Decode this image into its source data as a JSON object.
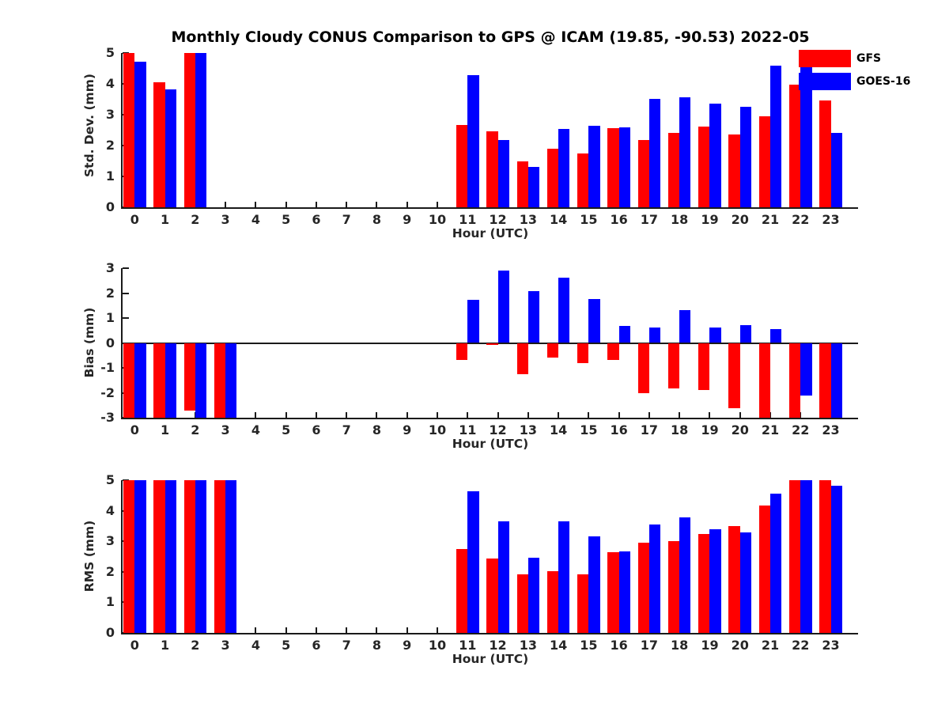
{
  "title": "Monthly Cloudy CONUS Comparison to GPS @ ICAM (19.85, -90.53) 2022-05",
  "legend": {
    "position": "top-right",
    "items": [
      {
        "label": "GFS",
        "color": "#ff0000"
      },
      {
        "label": "GOES-16",
        "color": "#0000ff"
      }
    ]
  },
  "colors": {
    "gfs": "#ff0000",
    "goes16": "#0000ff",
    "axis": "#1a1a1a",
    "text": "#262626",
    "background": "#ffffff"
  },
  "chart_data": [
    {
      "type": "bar",
      "name": "std-dev",
      "ylabel": "Std. Dev. (mm)",
      "xlabel": "Hour (UTC)",
      "ylim": [
        0,
        5
      ],
      "yticks": [
        0,
        1,
        2,
        3,
        4,
        5
      ],
      "zero_line": false,
      "grid": false,
      "categories": [
        "0",
        "1",
        "2",
        "3",
        "4",
        "5",
        "6",
        "7",
        "8",
        "9",
        "10",
        "11",
        "12",
        "13",
        "14",
        "15",
        "16",
        "17",
        "18",
        "19",
        "20",
        "21",
        "22",
        "23"
      ],
      "series": [
        {
          "name": "GFS",
          "color": "#ff0000",
          "values": [
            5.0,
            4.05,
            5.0,
            null,
            null,
            null,
            null,
            null,
            null,
            null,
            null,
            2.67,
            2.47,
            1.5,
            1.9,
            1.75,
            2.57,
            2.18,
            2.4,
            2.62,
            2.35,
            2.95,
            3.98,
            3.45
          ]
        },
        {
          "name": "GOES-16",
          "color": "#0000ff",
          "values": [
            4.72,
            3.82,
            5.0,
            null,
            null,
            null,
            null,
            null,
            null,
            null,
            null,
            4.27,
            2.17,
            1.32,
            2.55,
            2.63,
            2.6,
            3.52,
            3.57,
            3.37,
            3.25,
            4.6,
            5.0,
            2.42
          ]
        }
      ]
    },
    {
      "type": "bar",
      "name": "bias",
      "ylabel": "Bias (mm)",
      "xlabel": "Hour (UTC)",
      "ylim": [
        -3,
        3
      ],
      "yticks": [
        -3,
        -2,
        -1,
        0,
        1,
        2,
        3
      ],
      "zero_line": true,
      "grid": false,
      "categories": [
        "0",
        "1",
        "2",
        "3",
        "4",
        "5",
        "6",
        "7",
        "8",
        "9",
        "10",
        "11",
        "12",
        "13",
        "14",
        "15",
        "16",
        "17",
        "18",
        "19",
        "20",
        "21",
        "22",
        "23"
      ],
      "series": [
        {
          "name": "GFS",
          "color": "#ff0000",
          "values": [
            -3.0,
            -3.0,
            -2.7,
            -3.0,
            null,
            null,
            null,
            null,
            null,
            null,
            null,
            -0.67,
            -0.07,
            -1.25,
            -0.6,
            -0.8,
            -0.68,
            -2.0,
            -1.82,
            -1.9,
            -2.62,
            -3.0,
            -3.0,
            -3.0
          ]
        },
        {
          "name": "GOES-16",
          "color": "#0000ff",
          "values": [
            -3.0,
            -3.0,
            -3.0,
            -3.0,
            null,
            null,
            null,
            null,
            null,
            null,
            null,
            1.72,
            2.92,
            2.07,
            2.62,
            1.77,
            0.68,
            0.62,
            1.33,
            0.62,
            0.7,
            0.55,
            -2.1,
            -3.0
          ]
        }
      ]
    },
    {
      "type": "bar",
      "name": "rms",
      "ylabel": "RMS (mm)",
      "xlabel": "Hour (UTC)",
      "ylim": [
        0,
        5
      ],
      "yticks": [
        0,
        1,
        2,
        3,
        4,
        5
      ],
      "zero_line": false,
      "grid": false,
      "categories": [
        "0",
        "1",
        "2",
        "3",
        "4",
        "5",
        "6",
        "7",
        "8",
        "9",
        "10",
        "11",
        "12",
        "13",
        "14",
        "15",
        "16",
        "17",
        "18",
        "19",
        "20",
        "21",
        "22",
        "23"
      ],
      "series": [
        {
          "name": "GFS",
          "color": "#ff0000",
          "values": [
            5.0,
            5.0,
            5.0,
            5.0,
            null,
            null,
            null,
            null,
            null,
            null,
            null,
            2.75,
            2.43,
            1.93,
            2.02,
            1.91,
            2.64,
            2.96,
            3.0,
            3.24,
            3.51,
            4.17,
            5.0,
            5.0
          ]
        },
        {
          "name": "GOES-16",
          "color": "#0000ff",
          "values": [
            5.0,
            5.0,
            5.0,
            5.0,
            null,
            null,
            null,
            null,
            null,
            null,
            null,
            4.63,
            3.65,
            2.45,
            3.64,
            3.16,
            2.68,
            3.55,
            3.79,
            3.39,
            3.3,
            4.56,
            5.0,
            4.82
          ]
        }
      ]
    }
  ]
}
